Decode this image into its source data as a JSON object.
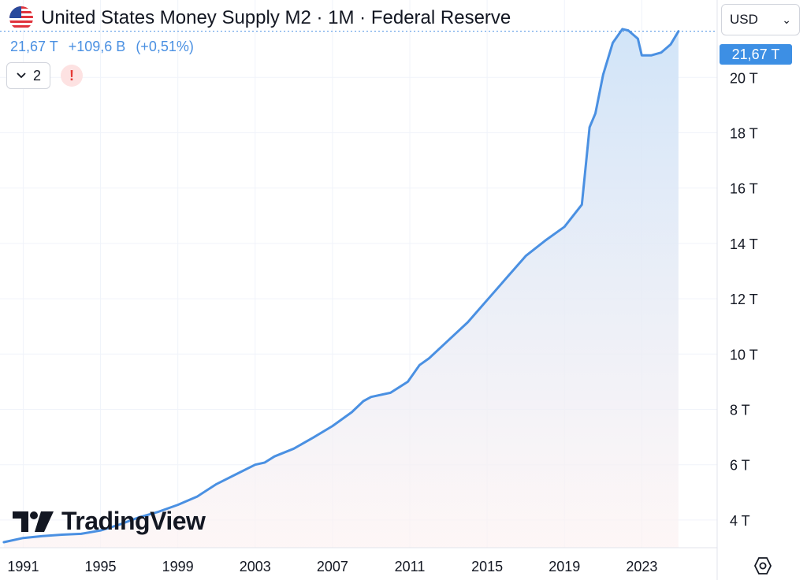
{
  "header": {
    "title": "United States Money Supply M2 · 1M · Federal Reserve",
    "last_value": "21,67 T",
    "change": "+109,6 B",
    "change_pct": "(+0,51%)"
  },
  "controls": {
    "currency": "USD",
    "layers_count": "2",
    "alert_symbol": "!"
  },
  "last_price_label": "21,67 T",
  "logo_text": "TradingView",
  "colors": {
    "line": "#4a90e2",
    "area_top": "#cfe3f8",
    "area_bottom": "#fdf3f3",
    "last_label_bg": "#3d8fe4",
    "alert": "#e53935"
  },
  "chart_data": {
    "type": "area",
    "title": "United States Money Supply M2 · 1M · Federal Reserve",
    "xlabel": "",
    "ylabel": "",
    "x_tick_labels": [
      "1991",
      "1995",
      "1999",
      "2003",
      "2007",
      "2011",
      "2015",
      "2019",
      "2023"
    ],
    "y_tick_labels": [
      "4 T",
      "6 T",
      "8 T",
      "10 T",
      "12 T",
      "14 T",
      "16 T",
      "18 T",
      "20 T"
    ],
    "y_tick_values": [
      4,
      6,
      8,
      10,
      12,
      14,
      16,
      18,
      20
    ],
    "ylim": [
      3.0,
      22.8
    ],
    "xlim": [
      1989.8,
      2026.9
    ],
    "grid": true,
    "unit": "trillion USD",
    "series": [
      {
        "x": [
          1990.0,
          1991.0,
          1992.0,
          1993.0,
          1994.0,
          1995.0,
          1996.0,
          1997.0,
          1998.0,
          1999.0,
          2000.0,
          2001.0,
          2002.0,
          2003.0,
          2003.5,
          2004.0,
          2005.0,
          2006.0,
          2007.0,
          2008.0,
          2008.6,
          2009.0,
          2010.0,
          2010.9,
          2011.5,
          2012.0,
          2013.0,
          2014.0,
          2015.0,
          2016.0,
          2017.0,
          2018.0,
          2019.0,
          2019.9,
          2020.2,
          2020.3,
          2020.6,
          2021.0,
          2021.5,
          2022.0,
          2022.3,
          2022.8,
          2023.0,
          2023.5,
          2024.0,
          2024.5,
          2024.9
        ],
        "y": [
          3.2,
          3.35,
          3.42,
          3.47,
          3.5,
          3.62,
          3.84,
          4.1,
          4.3,
          4.55,
          4.85,
          5.3,
          5.65,
          6.0,
          6.08,
          6.3,
          6.58,
          6.98,
          7.4,
          7.9,
          8.3,
          8.45,
          8.6,
          9.0,
          9.6,
          9.85,
          10.5,
          11.15,
          11.95,
          12.75,
          13.55,
          14.1,
          14.6,
          15.4,
          17.5,
          18.2,
          18.7,
          20.1,
          21.25,
          21.75,
          21.7,
          21.4,
          20.8,
          20.8,
          20.9,
          21.2,
          21.67
        ]
      }
    ]
  }
}
